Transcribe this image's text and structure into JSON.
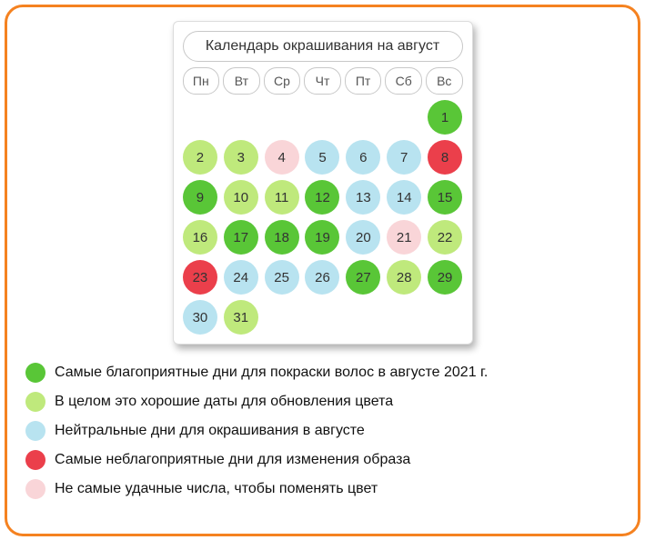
{
  "calendar": {
    "title": "Календарь окрашивания на август",
    "day_headers": [
      "Пн",
      "Вт",
      "Ср",
      "Чт",
      "Пт",
      "Сб",
      "Вс"
    ],
    "leading_blanks": 6,
    "days": [
      {
        "n": 1,
        "c": "best"
      },
      {
        "n": 2,
        "c": "good"
      },
      {
        "n": 3,
        "c": "good"
      },
      {
        "n": 4,
        "c": "poor"
      },
      {
        "n": 5,
        "c": "neutral"
      },
      {
        "n": 6,
        "c": "neutral"
      },
      {
        "n": 7,
        "c": "neutral"
      },
      {
        "n": 8,
        "c": "worst"
      },
      {
        "n": 9,
        "c": "best"
      },
      {
        "n": 10,
        "c": "good"
      },
      {
        "n": 11,
        "c": "good"
      },
      {
        "n": 12,
        "c": "best"
      },
      {
        "n": 13,
        "c": "neutral"
      },
      {
        "n": 14,
        "c": "neutral"
      },
      {
        "n": 15,
        "c": "best"
      },
      {
        "n": 16,
        "c": "good"
      },
      {
        "n": 17,
        "c": "best"
      },
      {
        "n": 18,
        "c": "best"
      },
      {
        "n": 19,
        "c": "best"
      },
      {
        "n": 20,
        "c": "neutral"
      },
      {
        "n": 21,
        "c": "poor"
      },
      {
        "n": 22,
        "c": "good"
      },
      {
        "n": 23,
        "c": "worst"
      },
      {
        "n": 24,
        "c": "neutral"
      },
      {
        "n": 25,
        "c": "neutral"
      },
      {
        "n": 26,
        "c": "neutral"
      },
      {
        "n": 27,
        "c": "best"
      },
      {
        "n": 28,
        "c": "good"
      },
      {
        "n": 29,
        "c": "best"
      },
      {
        "n": 30,
        "c": "neutral"
      },
      {
        "n": 31,
        "c": "good"
      }
    ],
    "colors": {
      "best": "#59c637",
      "good": "#bfe97c",
      "neutral": "#b8e3f0",
      "worst": "#eb3f4b",
      "poor": "#f9d5d8",
      "empty": "transparent"
    },
    "circle_size": 38,
    "font_size": 15
  },
  "legend": {
    "items": [
      {
        "color_key": "best",
        "text": "Самые благоприятные дни для покраски волос в августе 2021 г."
      },
      {
        "color_key": "good",
        "text": "В целом это хорошие даты для обновления цвета"
      },
      {
        "color_key": "neutral",
        "text": "Нейтральные дни для окрашивания в августе"
      },
      {
        "color_key": "worst",
        "text": "Самые неблагоприятные дни для изменения образа"
      },
      {
        "color_key": "poor",
        "text": "Не самые удачные числа, чтобы поменять цвет"
      }
    ]
  },
  "frame": {
    "border_color": "#f58220",
    "border_radius": 20
  }
}
